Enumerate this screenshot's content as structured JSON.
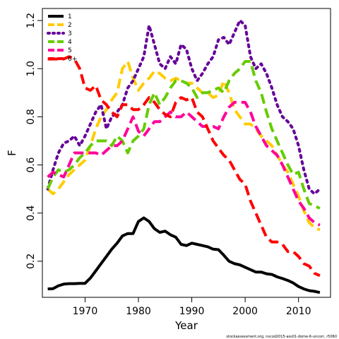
{
  "chart_data": {
    "type": "line",
    "title": "",
    "xlabel": "Year",
    "ylabel": "F",
    "xlim": [
      1962,
      2016
    ],
    "ylim": [
      0.05,
      1.25
    ],
    "xticks": [
      1970,
      1980,
      1990,
      2000,
      2010
    ],
    "yticks": [
      0.2,
      0.4,
      0.6,
      0.8,
      1.0,
      1.2
    ],
    "grid": false,
    "legend_position": "top-left",
    "series": [
      {
        "name": "1",
        "color": "#000000",
        "dash": "solid",
        "x": [
          1963,
          1964,
          1965,
          1966,
          1967,
          1968,
          1969,
          1970,
          1971,
          1972,
          1973,
          1974,
          1975,
          1976,
          1977,
          1978,
          1979,
          1980,
          1981,
          1982,
          1983,
          1984,
          1985,
          1986,
          1987,
          1988,
          1989,
          1990,
          1991,
          1992,
          1993,
          1994,
          1995,
          1996,
          1997,
          1998,
          1999,
          2000,
          2001,
          2002,
          2003,
          2004,
          2005,
          2006,
          2007,
          2008,
          2009,
          2010,
          2011,
          2012,
          2013,
          2014
        ],
        "values": [
          0.085,
          0.086,
          0.098,
          0.105,
          0.107,
          0.107,
          0.108,
          0.108,
          0.13,
          0.16,
          0.19,
          0.22,
          0.25,
          0.275,
          0.305,
          0.315,
          0.315,
          0.365,
          0.38,
          0.365,
          0.335,
          0.32,
          0.325,
          0.31,
          0.3,
          0.27,
          0.265,
          0.275,
          0.27,
          0.265,
          0.26,
          0.25,
          0.248,
          0.225,
          0.2,
          0.19,
          0.185,
          0.175,
          0.165,
          0.155,
          0.155,
          0.148,
          0.145,
          0.135,
          0.128,
          0.12,
          0.11,
          0.095,
          0.085,
          0.078,
          0.075,
          0.07
        ]
      },
      {
        "name": "2",
        "color": "#ffcc00",
        "dash": "long-dash",
        "x": [
          1963,
          1964,
          1965,
          1966,
          1967,
          1968,
          1969,
          1970,
          1971,
          1972,
          1973,
          1974,
          1975,
          1976,
          1977,
          1978,
          1979,
          1980,
          1981,
          1982,
          1983,
          1984,
          1985,
          1986,
          1987,
          1988,
          1989,
          1990,
          1991,
          1992,
          1993,
          1994,
          1995,
          1996,
          1997,
          1998,
          1999,
          2000,
          2001,
          2002,
          2003,
          2004,
          2005,
          2006,
          2007,
          2008,
          2009,
          2010,
          2011,
          2012,
          2013,
          2014
        ],
        "values": [
          0.5,
          0.48,
          0.5,
          0.53,
          0.56,
          0.58,
          0.6,
          0.62,
          0.68,
          0.75,
          0.8,
          0.83,
          0.87,
          0.9,
          1.0,
          1.03,
          0.96,
          0.91,
          0.94,
          0.96,
          0.99,
          0.98,
          0.96,
          0.95,
          0.96,
          0.95,
          0.94,
          0.94,
          0.92,
          0.9,
          0.9,
          0.88,
          0.89,
          0.95,
          0.9,
          0.83,
          0.8,
          0.77,
          0.77,
          0.75,
          0.72,
          0.7,
          0.68,
          0.64,
          0.6,
          0.57,
          0.52,
          0.47,
          0.41,
          0.36,
          0.34,
          0.33
        ]
      },
      {
        "name": "3",
        "color": "#660099",
        "dash": "dotted",
        "x": [
          1963,
          1964,
          1965,
          1966,
          1967,
          1968,
          1969,
          1970,
          1971,
          1972,
          1973,
          1974,
          1975,
          1976,
          1977,
          1978,
          1979,
          1980,
          1981,
          1982,
          1983,
          1984,
          1985,
          1986,
          1987,
          1988,
          1989,
          1990,
          1991,
          1992,
          1993,
          1994,
          1995,
          1996,
          1997,
          1998,
          1999,
          2000,
          2001,
          2002,
          2003,
          2004,
          2005,
          2006,
          2007,
          2008,
          2009,
          2010,
          2011,
          2012,
          2013,
          2014
        ],
        "values": [
          0.5,
          0.58,
          0.65,
          0.69,
          0.7,
          0.72,
          0.68,
          0.72,
          0.77,
          0.82,
          0.85,
          0.75,
          0.8,
          0.82,
          0.85,
          0.92,
          0.95,
          1.0,
          1.05,
          1.18,
          1.1,
          1.02,
          1.0,
          1.05,
          1.02,
          1.1,
          1.08,
          1.0,
          0.95,
          0.98,
          1.02,
          1.05,
          1.12,
          1.13,
          1.1,
          1.15,
          1.2,
          1.18,
          1.05,
          1.0,
          1.02,
          0.98,
          0.92,
          0.85,
          0.8,
          0.78,
          0.75,
          0.68,
          0.58,
          0.5,
          0.48,
          0.5
        ]
      },
      {
        "name": "4",
        "color": "#66cc00",
        "dash": "long-dash",
        "x": [
          1963,
          1964,
          1965,
          1966,
          1967,
          1968,
          1969,
          1970,
          1971,
          1972,
          1973,
          1974,
          1975,
          1976,
          1977,
          1978,
          1979,
          1980,
          1981,
          1982,
          1983,
          1984,
          1985,
          1986,
          1987,
          1988,
          1989,
          1990,
          1991,
          1992,
          1993,
          1994,
          1995,
          1996,
          1997,
          1998,
          1999,
          2000,
          2001,
          2002,
          2003,
          2004,
          2005,
          2006,
          2007,
          2008,
          2009,
          2010,
          2011,
          2012,
          2013,
          2014
        ],
        "values": [
          0.5,
          0.55,
          0.58,
          0.57,
          0.58,
          0.6,
          0.63,
          0.65,
          0.68,
          0.7,
          0.7,
          0.7,
          0.68,
          0.72,
          0.7,
          0.65,
          0.7,
          0.72,
          0.75,
          0.85,
          0.9,
          0.85,
          0.88,
          0.92,
          0.95,
          0.95,
          0.94,
          0.92,
          0.88,
          0.9,
          0.9,
          0.91,
          0.92,
          0.9,
          0.95,
          0.98,
          1.0,
          1.03,
          1.03,
          0.95,
          0.9,
          0.82,
          0.75,
          0.7,
          0.65,
          0.6,
          0.56,
          0.57,
          0.5,
          0.44,
          0.43,
          0.42
        ]
      },
      {
        "name": "5",
        "color": "#ff0099",
        "dash": "long-dash",
        "x": [
          1963,
          1964,
          1965,
          1966,
          1967,
          1968,
          1969,
          1970,
          1971,
          1972,
          1973,
          1974,
          1975,
          1976,
          1977,
          1978,
          1979,
          1980,
          1981,
          1982,
          1983,
          1984,
          1985,
          1986,
          1987,
          1988,
          1989,
          1990,
          1991,
          1992,
          1993,
          1994,
          1995,
          1996,
          1997,
          1998,
          1999,
          2000,
          2001,
          2002,
          2003,
          2004,
          2005,
          2006,
          2007,
          2008,
          2009,
          2010,
          2011,
          2012,
          2013,
          2014
        ],
        "values": [
          0.55,
          0.57,
          0.56,
          0.55,
          0.6,
          0.65,
          0.65,
          0.65,
          0.65,
          0.65,
          0.64,
          0.66,
          0.68,
          0.68,
          0.7,
          0.75,
          0.8,
          0.74,
          0.72,
          0.75,
          0.78,
          0.78,
          0.8,
          0.82,
          0.8,
          0.8,
          0.82,
          0.8,
          0.78,
          0.76,
          0.76,
          0.76,
          0.75,
          0.8,
          0.84,
          0.86,
          0.86,
          0.86,
          0.82,
          0.76,
          0.72,
          0.68,
          0.66,
          0.64,
          0.6,
          0.55,
          0.5,
          0.45,
          0.42,
          0.38,
          0.36,
          0.35
        ]
      },
      {
        "name": "6+",
        "color": "#ff0000",
        "dash": "long-dash",
        "x": [
          1963,
          1964,
          1965,
          1966,
          1967,
          1968,
          1969,
          1970,
          1971,
          1972,
          1973,
          1974,
          1975,
          1976,
          1977,
          1978,
          1979,
          1980,
          1981,
          1982,
          1983,
          1984,
          1985,
          1986,
          1987,
          1988,
          1989,
          1990,
          1991,
          1992,
          1993,
          1994,
          1995,
          1996,
          1997,
          1998,
          1999,
          2000,
          2001,
          2002,
          2003,
          2004,
          2005,
          2006,
          2007,
          2008,
          2009,
          2010,
          2011,
          2012,
          2013,
          2014
        ],
        "values": [
          1.04,
          1.04,
          1.04,
          1.04,
          1.05,
          1.04,
          1.0,
          0.92,
          0.91,
          0.93,
          0.87,
          0.85,
          0.82,
          0.8,
          0.85,
          0.85,
          0.83,
          0.83,
          0.85,
          0.88,
          0.86,
          0.83,
          0.81,
          0.8,
          0.86,
          0.88,
          0.87,
          0.88,
          0.82,
          0.8,
          0.75,
          0.7,
          0.67,
          0.64,
          0.62,
          0.58,
          0.54,
          0.52,
          0.45,
          0.4,
          0.35,
          0.3,
          0.28,
          0.28,
          0.27,
          0.24,
          0.24,
          0.22,
          0.19,
          0.18,
          0.15,
          0.14
        ]
      }
    ],
    "footnote": "stockassessment.org, nscod2015-ass01-dome-6-uncorr, r5060"
  }
}
